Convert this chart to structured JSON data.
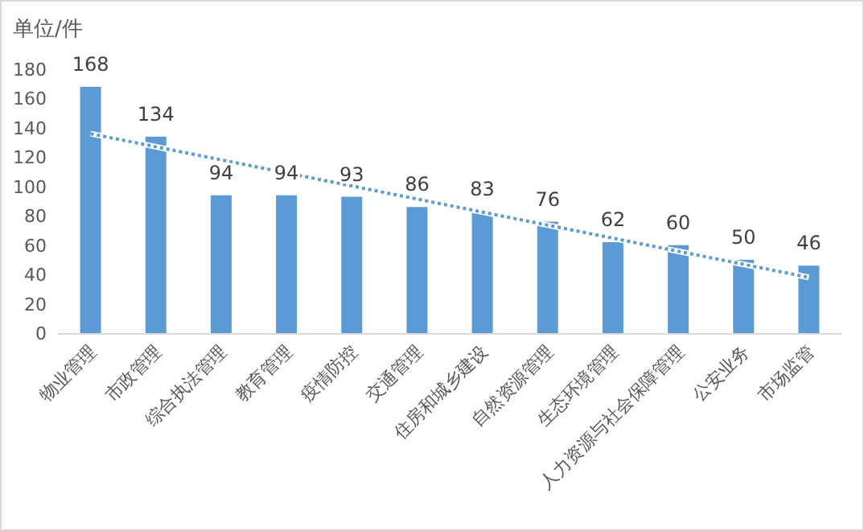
{
  "chart_data": {
    "type": "bar",
    "ylabel": "单位/件",
    "categories": [
      "物业管理",
      "市政管理",
      "综合执法管理",
      "教育管理",
      "疫情防控",
      "交通管理",
      "住房和城乡建设",
      "自然资源管理",
      "生态环境管理",
      "人力资源与社会保障管理",
      "公安业务",
      "市场监管"
    ],
    "series": [
      {
        "color": "#5b9bd5",
        "values": [
          168,
          134,
          94,
          94,
          93,
          86,
          83,
          76,
          62,
          60,
          50,
          46
        ],
        "value_labels": [
          "168",
          "134",
          "94",
          "94",
          "93",
          "86",
          "83",
          "76",
          "62",
          "60",
          "50",
          "46"
        ]
      },
      {
        "type": "line",
        "color": "#5b9bd5",
        "line_style": "dotted",
        "x": [
          "物业管理",
          "市场监管"
        ],
        "values": [
          136,
          38
        ]
      }
    ],
    "ylim": [
      0,
      180
    ],
    "yticks": [
      0,
      20,
      40,
      60,
      80,
      100,
      120,
      140,
      160,
      180
    ]
  }
}
